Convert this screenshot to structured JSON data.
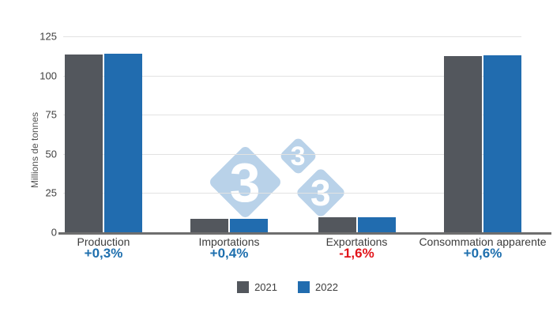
{
  "chart_data": {
    "type": "bar",
    "title": "",
    "xlabel": "",
    "ylabel": "Millions de tonnes",
    "categories": [
      "Production",
      "Importations",
      "Exportations",
      "Consommation apparente"
    ],
    "series": [
      {
        "name": "2021",
        "color": "#53575D",
        "values": [
          113.4,
          8.5,
          9.5,
          112.4
        ]
      },
      {
        "name": "2022",
        "color": "#216CAF",
        "values": [
          113.7,
          8.53,
          9.35,
          113.1
        ]
      }
    ],
    "change_labels": [
      {
        "text": "+0,3%",
        "color": "#1E6FAE"
      },
      {
        "text": "+0,4%",
        "color": "#1E6FAE"
      },
      {
        "text": "-1,6%",
        "color": "#E1141A"
      },
      {
        "text": "+0,6%",
        "color": "#1E6FAE"
      }
    ],
    "y_ticks": [
      0,
      25,
      50,
      75,
      100,
      125
    ],
    "ylim": [
      0,
      125
    ],
    "grid": true,
    "legend_position": "bottom"
  },
  "watermark": {
    "digits": [
      "3",
      "3",
      "3"
    ],
    "color": "#B9D2E9"
  }
}
